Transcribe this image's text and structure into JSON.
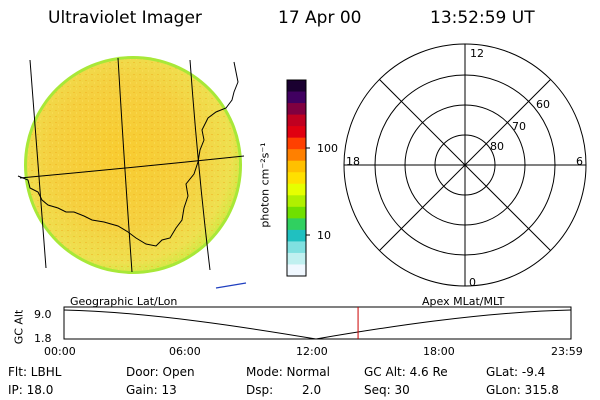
{
  "header": {
    "title": "Ultraviolet Imager",
    "date": "17 Apr 00",
    "time": "13:52:59 UT"
  },
  "colorbar": {
    "unit_label": "photon cm⁻²s⁻¹",
    "ticks": [
      "100",
      "10"
    ],
    "colors": [
      "#1a0030",
      "#400060",
      "#800040",
      "#c00020",
      "#e00010",
      "#ff4000",
      "#ff8000",
      "#ffc000",
      "#ffe000",
      "#e6ff00",
      "#b0f000",
      "#70e000",
      "#30d060",
      "#20c0c0",
      "#80e0e0",
      "#c0f0f0",
      "#f0f8ff"
    ]
  },
  "polar_plot": {
    "mlt_labels": [
      "12",
      "18",
      "6",
      "0"
    ],
    "lat_labels": [
      "60",
      "70",
      "80"
    ]
  },
  "timeline": {
    "left_title": "Geographic Lat/Lon",
    "right_title": "Apex MLat/MLT",
    "y_axis_label": "GC Alt",
    "y_ticks": [
      "9.0",
      "1.8"
    ],
    "x_ticks": [
      "00:00",
      "06:00",
      "12:00",
      "18:00",
      "23:59"
    ],
    "current_time_fraction": 0.58,
    "marker_color": "#cc0000"
  },
  "info": {
    "filter": "Flt: LBHL",
    "ip": "IP: 18.0",
    "door": "Door: Open",
    "gain": "Gain: 13",
    "mode": "Mode: Normal",
    "dsp_label": "Dsp:",
    "dsp_value": "2.0",
    "gc_alt": "GC Alt: 4.6 Re",
    "seq": "Seq: 30",
    "glat": "GLat:  -9.4",
    "glon": "GLon: 315.8"
  }
}
